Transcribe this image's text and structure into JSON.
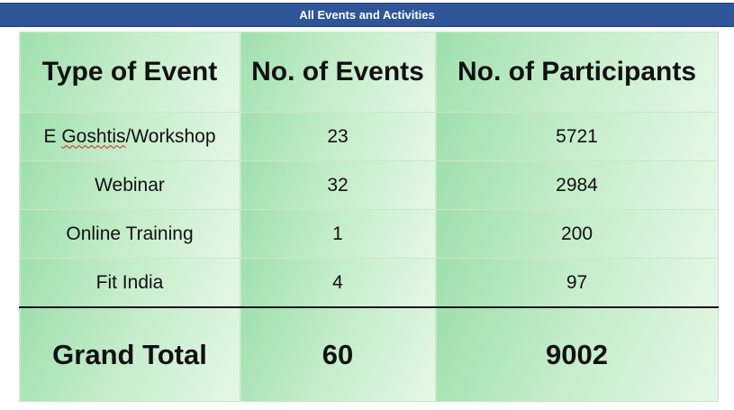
{
  "title": "All Events and Activities",
  "table": {
    "headers": [
      "Type of Event",
      "No. of Events",
      "No. of Participants"
    ],
    "rows": [
      {
        "type_prefix": "E ",
        "type_flagged": "Goshtis",
        "type_suffix": "/Workshop",
        "events": "23",
        "participants": "5721"
      },
      {
        "type": "Webinar",
        "events": "32",
        "participants": "2984"
      },
      {
        "type": "Online Training",
        "events": "1",
        "participants": "200"
      },
      {
        "type": "Fit India",
        "events": "4",
        "participants": "97"
      }
    ],
    "total": {
      "label": "Grand Total",
      "events": "60",
      "participants": "9002"
    }
  },
  "colors": {
    "title_bar": "#2e5597",
    "cell_gradient_start": "#9fdfae",
    "cell_gradient_end": "#e6f7e7"
  }
}
